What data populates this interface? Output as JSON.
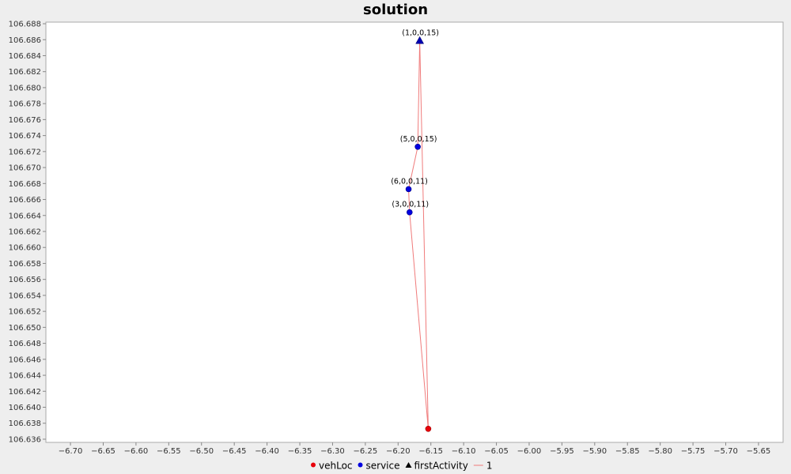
{
  "chart_data": {
    "type": "scatter",
    "title": "solution",
    "xlabel": "",
    "ylabel": "",
    "xlim": [
      -6.7375,
      -5.6125
    ],
    "ylim": [
      106.6356,
      106.6882
    ],
    "x_ticks": [
      "-6.70",
      "-6.65",
      "-6.60",
      "-6.55",
      "-6.50",
      "-6.45",
      "-6.40",
      "-6.35",
      "-6.30",
      "-6.25",
      "-6.20",
      "-6.15",
      "-6.10",
      "-6.05",
      "-6.00",
      "-5.95",
      "-5.90",
      "-5.85",
      "-5.80",
      "-5.75",
      "-5.70",
      "-5.65"
    ],
    "y_ticks": [
      "106.636",
      "106.638",
      "106.640",
      "106.642",
      "106.644",
      "106.646",
      "106.648",
      "106.650",
      "106.652",
      "106.654",
      "106.656",
      "106.658",
      "106.660",
      "106.662",
      "106.664",
      "106.666",
      "106.668",
      "106.670",
      "106.672",
      "106.674",
      "106.676",
      "106.678",
      "106.680",
      "106.682",
      "106.684",
      "106.686",
      "106.688"
    ],
    "grid": false,
    "legend_position": "bottom",
    "series": [
      {
        "name": "vehLoc",
        "kind": "point",
        "marker": "circle",
        "color": "#e8000b",
        "points": [
          {
            "x": -6.154,
            "y": 106.6373
          }
        ]
      },
      {
        "name": "service",
        "kind": "point",
        "marker": "circle",
        "color": "#0000e0",
        "points": [
          {
            "x": -6.17,
            "y": 106.6726,
            "label": "(5,0,0,15)"
          },
          {
            "x": -6.184,
            "y": 106.6673,
            "label": "(6,0,0,11)"
          },
          {
            "x": -6.1825,
            "y": 106.6644,
            "label": "(3,0,0,11)"
          }
        ]
      },
      {
        "name": "firstActivity",
        "kind": "point",
        "marker": "triangle",
        "color": "#0000b0",
        "points": [
          {
            "x": -6.167,
            "y": 106.6859,
            "label": "(1,0,0,15)"
          }
        ]
      },
      {
        "name": "1",
        "kind": "line",
        "color": "#f07b7b",
        "points": [
          {
            "x": -6.154,
            "y": 106.6373
          },
          {
            "x": -6.167,
            "y": 106.6859
          },
          {
            "x": -6.17,
            "y": 106.6726
          },
          {
            "x": -6.184,
            "y": 106.6673
          },
          {
            "x": -6.1825,
            "y": 106.6644
          },
          {
            "x": -6.154,
            "y": 106.6373
          }
        ]
      }
    ]
  }
}
